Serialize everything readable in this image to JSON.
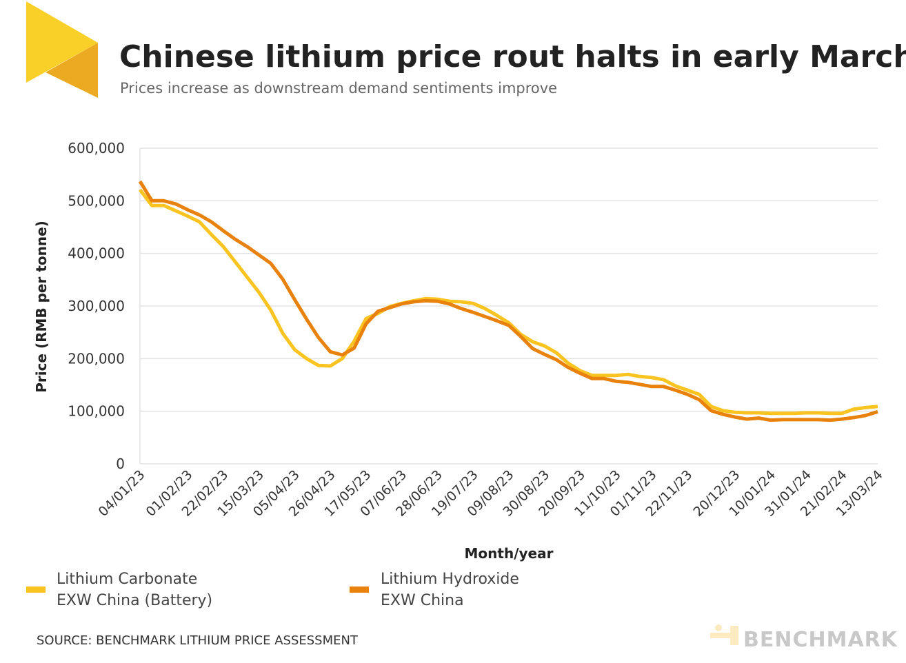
{
  "header": {
    "title": "Chinese lithium price rout halts in early March",
    "subtitle": "Prices increase as downstream demand sentiments improve"
  },
  "footer": {
    "source": "SOURCE: BENCHMARK LITHIUM PRICE ASSESSMENT",
    "brand": "BENCHMARK"
  },
  "chart_data": {
    "type": "line",
    "title": "Chinese lithium price rout halts in early March",
    "xlabel": "Month/year",
    "ylabel": "Price (RMB per tonne)",
    "ylim": [
      0,
      600000
    ],
    "yticks": [
      0,
      100000,
      200000,
      300000,
      400000,
      500000,
      600000
    ],
    "ytick_labels": [
      "0",
      "100,000",
      "200,000",
      "300,000",
      "400,000",
      "500,000",
      "600,000"
    ],
    "grid": "horizontal",
    "legend_position": "bottom-left",
    "x": [
      "04/01/23",
      "11/01/23",
      "18/01/23",
      "25/01/23",
      "01/02/23",
      "08/02/23",
      "15/02/23",
      "22/02/23",
      "01/03/23",
      "08/03/23",
      "15/03/23",
      "22/03/23",
      "29/03/23",
      "05/04/23",
      "12/04/23",
      "19/04/23",
      "26/04/23",
      "03/05/23",
      "10/05/23",
      "17/05/23",
      "24/05/23",
      "31/05/23",
      "07/06/23",
      "14/06/23",
      "21/06/23",
      "28/06/23",
      "05/07/23",
      "12/07/23",
      "19/07/23",
      "26/07/23",
      "02/08/23",
      "09/08/23",
      "16/08/23",
      "23/08/23",
      "30/08/23",
      "06/09/23",
      "13/09/23",
      "20/09/23",
      "27/09/23",
      "04/10/23",
      "11/10/23",
      "18/10/23",
      "25/10/23",
      "01/11/23",
      "08/11/23",
      "15/11/23",
      "22/11/23",
      "29/11/23",
      "06/12/23",
      "13/12/23",
      "20/12/23",
      "27/12/23",
      "03/01/24",
      "10/01/24",
      "17/01/24",
      "24/01/24",
      "31/01/24",
      "07/02/24",
      "14/02/24",
      "21/02/24",
      "28/02/24",
      "06/03/24",
      "13/03/24"
    ],
    "xtick_labels": [
      "04/01/23",
      "01/02/23",
      "22/02/23",
      "15/03/23",
      "05/04/23",
      "26/04/23",
      "17/05/23",
      "07/06/23",
      "28/06/23",
      "19/07/23",
      "09/08/23",
      "30/08/23",
      "20/09/23",
      "11/10/23",
      "01/11/23",
      "22/11/23",
      "20/12/23",
      "10/01/24",
      "31/01/24",
      "21/02/24",
      "13/03/24"
    ],
    "series": [
      {
        "name": "Lithium Carbonate EXW China (Battery)",
        "legend_lines": [
          "Lithium Carbonate",
          "EXW China (Battery)"
        ],
        "color": "#F9C320",
        "values": [
          521000,
          491000,
          491000,
          481000,
          471000,
          460000,
          436000,
          413000,
          384000,
          355000,
          326000,
          292000,
          248000,
          217000,
          200000,
          187000,
          186000,
          200000,
          233000,
          276000,
          286000,
          299000,
          305000,
          310000,
          314000,
          313000,
          309000,
          308000,
          305000,
          295000,
          282000,
          268000,
          246000,
          232000,
          224000,
          211000,
          191000,
          177000,
          168000,
          168000,
          168000,
          170000,
          166000,
          164000,
          160000,
          148000,
          140000,
          132000,
          109000,
          101000,
          98000,
          97000,
          97000,
          96000,
          96000,
          96000,
          97000,
          97000,
          96000,
          96000,
          104000,
          107000,
          109000
        ]
      },
      {
        "name": "Lithium Hydroxide EXW China",
        "legend_lines": [
          "Lithium Hydroxide",
          "EXW China"
        ],
        "color": "#E8820C",
        "values": [
          537000,
          500000,
          500000,
          494000,
          483000,
          473000,
          460000,
          443000,
          427000,
          413000,
          397000,
          381000,
          351000,
          312000,
          275000,
          240000,
          213000,
          207000,
          220000,
          266000,
          290000,
          297000,
          304000,
          308000,
          310000,
          309000,
          304000,
          295000,
          288000,
          280000,
          272000,
          263000,
          242000,
          219000,
          208000,
          198000,
          183000,
          172000,
          162000,
          162000,
          157000,
          155000,
          151000,
          147000,
          147000,
          140000,
          132000,
          122000,
          101000,
          94000,
          89000,
          85000,
          87000,
          83000,
          84000,
          84000,
          84000,
          84000,
          83000,
          85000,
          88000,
          92000,
          99000
        ]
      }
    ]
  },
  "colors": {
    "logo_light": "#F8D027",
    "logo_dark": "#EBAA22",
    "grid": "#e3e3e3"
  }
}
